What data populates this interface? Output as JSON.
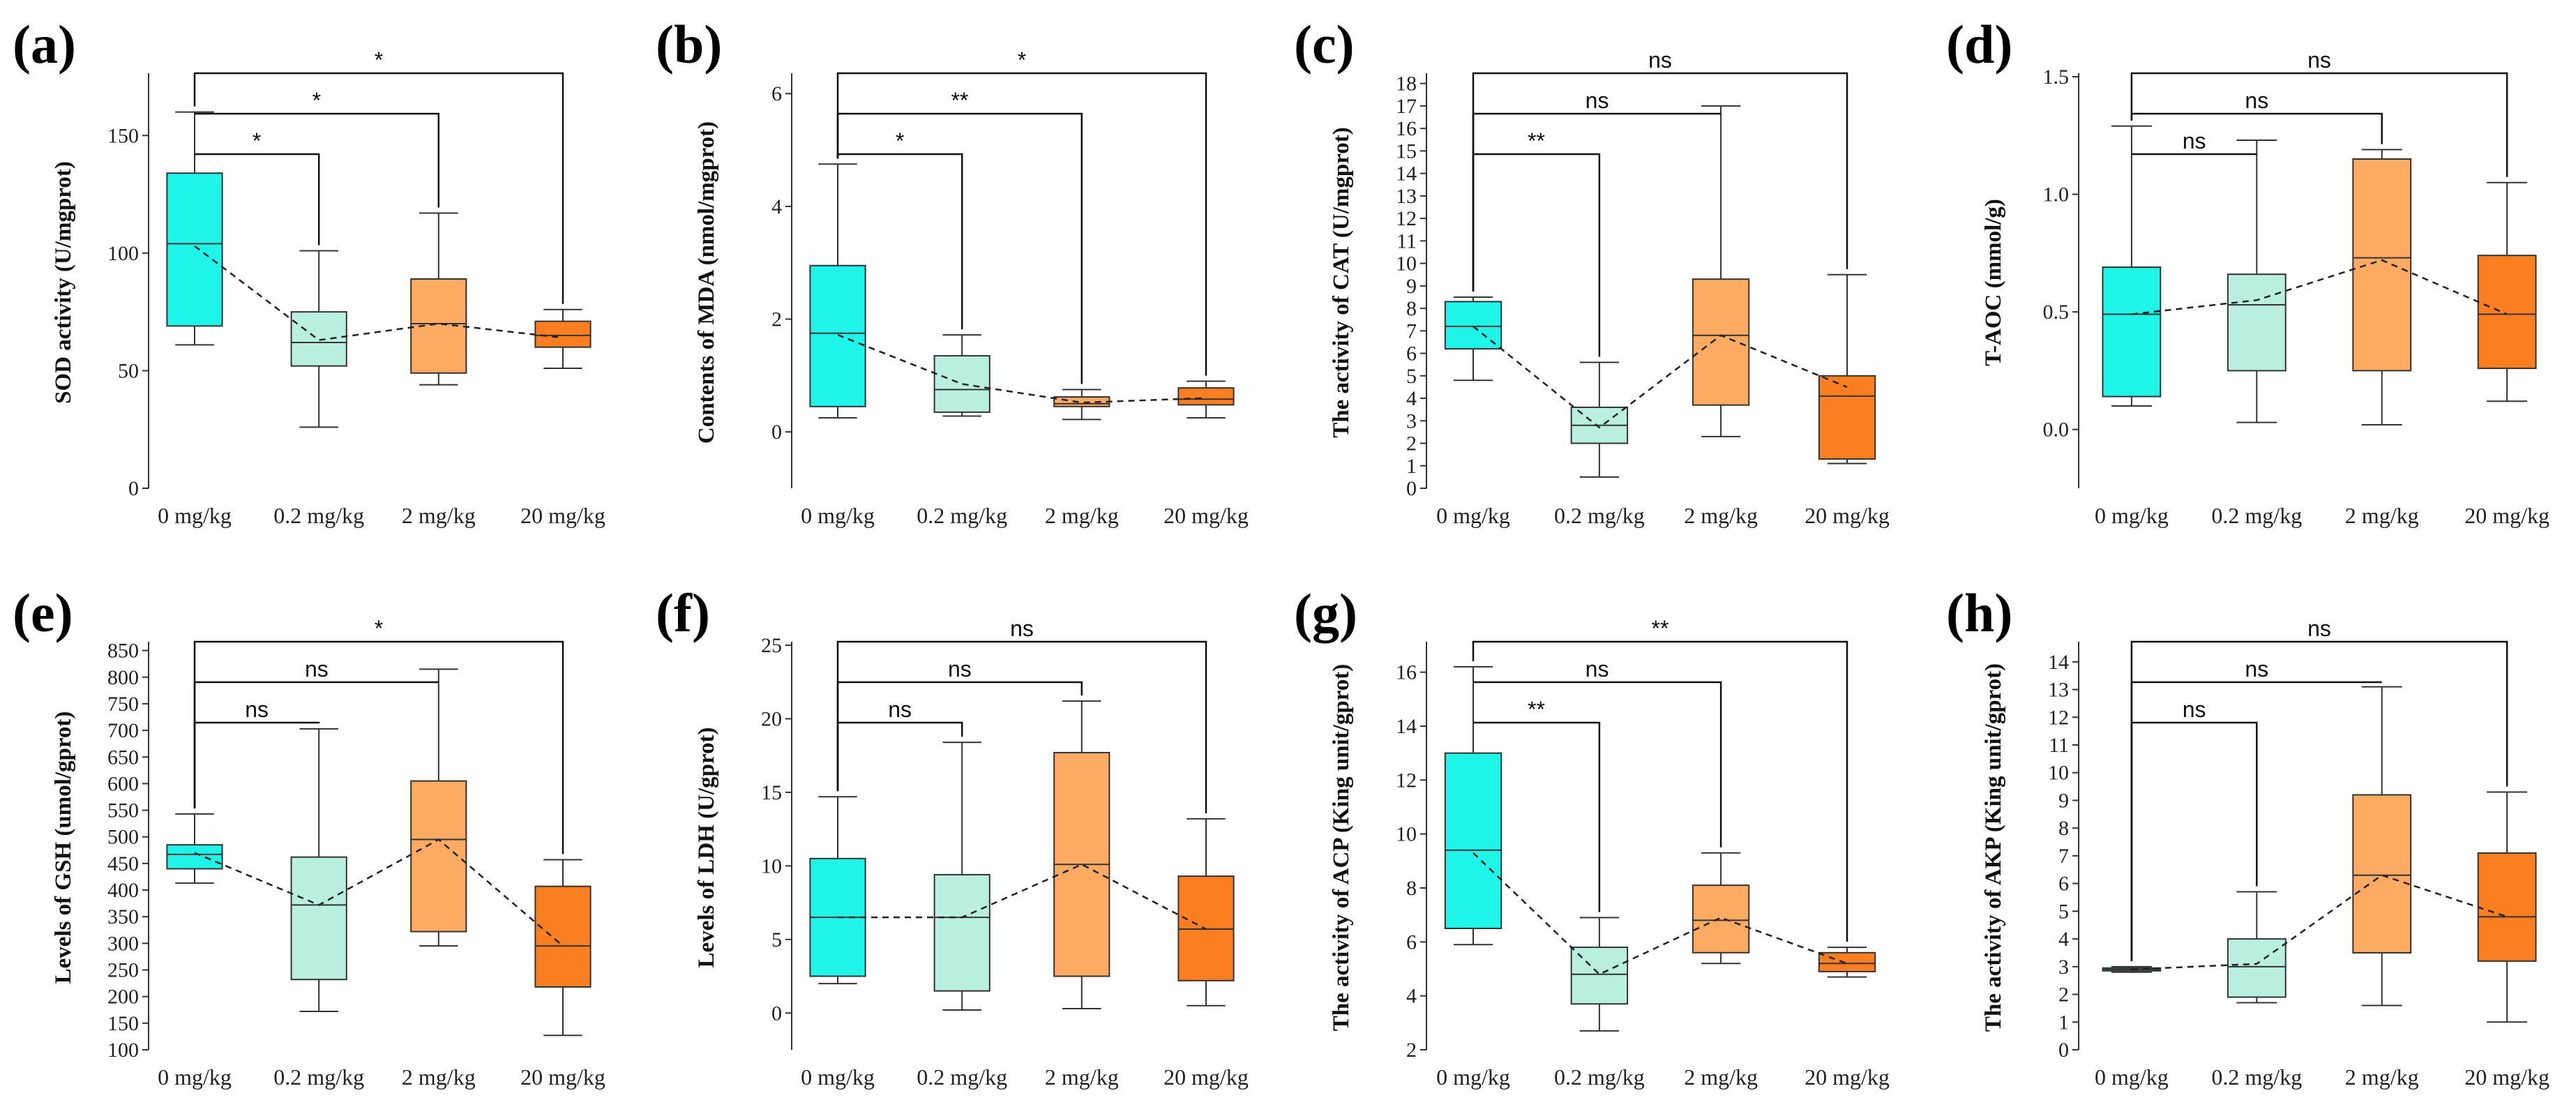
{
  "colors": {
    "group_0": "#1ef5e8",
    "group_02": "#b9efde",
    "group_2": "#fdab63",
    "group_20": "#fb7f20",
    "stroke": "#333333"
  },
  "chart_data": [
    {
      "panel": "(a)",
      "type": "box",
      "ylabel": "SOD activity (U/mgprot)",
      "ylim": [
        0,
        175
      ],
      "yticks": [
        0,
        50,
        100,
        150
      ],
      "categories": [
        "0 mg/kg",
        "0.2 mg/kg",
        "2 mg/kg",
        "20 mg/kg"
      ],
      "boxes": [
        {
          "min": 61,
          "q1": 69,
          "median": 104,
          "q3": 134,
          "max": 160,
          "mean": 103
        },
        {
          "min": 26,
          "q1": 52,
          "median": 62,
          "q3": 75,
          "max": 101,
          "mean": 63
        },
        {
          "min": 44,
          "q1": 49,
          "median": 70,
          "q3": 89,
          "max": 117,
          "mean": 70
        },
        {
          "min": 51,
          "q1": 60,
          "median": 65,
          "q3": 71,
          "max": 76,
          "mean": 64
        }
      ],
      "comparisons": [
        {
          "to": 1,
          "label": "*"
        },
        {
          "to": 2,
          "label": "*"
        },
        {
          "to": 3,
          "label": "*"
        }
      ]
    },
    {
      "panel": "(b)",
      "type": "box",
      "ylabel": "Contents of MDA (nmol/mgprot)",
      "ylim": [
        -1,
        6.3
      ],
      "yticks": [
        0,
        2,
        4,
        6
      ],
      "categories": [
        "0 mg/kg",
        "0.2 mg/kg",
        "2 mg/kg",
        "20 mg/kg"
      ],
      "boxes": [
        {
          "min": 0.25,
          "q1": 0.45,
          "median": 1.75,
          "q3": 2.95,
          "max": 4.75,
          "mean": 1.72
        },
        {
          "min": 0.28,
          "q1": 0.35,
          "median": 0.75,
          "q3": 1.35,
          "max": 1.72,
          "mean": 0.85
        },
        {
          "min": 0.22,
          "q1": 0.45,
          "median": 0.5,
          "q3": 0.62,
          "max": 0.75,
          "mean": 0.52
        },
        {
          "min": 0.25,
          "q1": 0.48,
          "median": 0.58,
          "q3": 0.78,
          "max": 0.9,
          "mean": 0.6
        }
      ],
      "comparisons": [
        {
          "to": 1,
          "label": "*"
        },
        {
          "to": 2,
          "label": "**"
        },
        {
          "to": 3,
          "label": "*"
        }
      ]
    },
    {
      "panel": "(c)",
      "type": "box",
      "ylabel": "The activity of CAT (U/mgprot)",
      "ylim": [
        0,
        18.3
      ],
      "yticks": [
        0,
        1,
        2,
        3,
        4,
        5,
        6,
        7,
        8,
        9,
        10,
        11,
        12,
        13,
        14,
        15,
        16,
        17,
        18
      ],
      "categories": [
        "0 mg/kg",
        "0.2 mg/kg",
        "2 mg/kg",
        "20 mg/kg"
      ],
      "boxes": [
        {
          "min": 4.8,
          "q1": 6.2,
          "median": 7.2,
          "q3": 8.3,
          "max": 8.5,
          "mean": 7.2
        },
        {
          "min": 0.5,
          "q1": 2.0,
          "median": 2.8,
          "q3": 3.6,
          "max": 5.6,
          "mean": 2.7
        },
        {
          "min": 2.3,
          "q1": 3.7,
          "median": 6.8,
          "q3": 9.3,
          "max": 17.0,
          "mean": 6.8
        },
        {
          "min": 1.1,
          "q1": 1.3,
          "median": 4.1,
          "q3": 5.0,
          "max": 9.5,
          "mean": 4.5
        }
      ],
      "comparisons": [
        {
          "to": 1,
          "label": "**"
        },
        {
          "to": 2,
          "label": "ns"
        },
        {
          "to": 3,
          "label": "ns"
        }
      ]
    },
    {
      "panel": "(d)",
      "type": "box",
      "ylabel": "T-AOC (mmol/g)",
      "ylim": [
        -0.25,
        1.5
      ],
      "yticks": [
        0.0,
        0.5,
        1.0,
        1.5
      ],
      "ytick_labels": [
        "0.0",
        "0.5",
        "1.0",
        "1.5"
      ],
      "categories": [
        "0 mg/kg",
        "0.2 mg/kg",
        "2 mg/kg",
        "20 mg/kg"
      ],
      "boxes": [
        {
          "min": 0.1,
          "q1": 0.14,
          "median": 0.49,
          "q3": 0.69,
          "max": 1.29,
          "mean": 0.49
        },
        {
          "min": 0.03,
          "q1": 0.25,
          "median": 0.53,
          "q3": 0.66,
          "max": 1.23,
          "mean": 0.55
        },
        {
          "min": 0.02,
          "q1": 0.25,
          "median": 0.73,
          "q3": 1.15,
          "max": 1.19,
          "mean": 0.72
        },
        {
          "min": 0.12,
          "q1": 0.26,
          "median": 0.49,
          "q3": 0.74,
          "max": 1.05,
          "mean": 0.49
        }
      ],
      "comparisons": [
        {
          "to": 1,
          "label": "ns"
        },
        {
          "to": 2,
          "label": "ns"
        },
        {
          "to": 3,
          "label": "ns"
        }
      ]
    },
    {
      "panel": "(e)",
      "type": "box",
      "ylabel": "Levels of GSH (umol/gprot)",
      "ylim": [
        100,
        860
      ],
      "yticks": [
        100,
        150,
        200,
        250,
        300,
        350,
        400,
        450,
        500,
        550,
        600,
        650,
        700,
        750,
        800,
        850
      ],
      "categories": [
        "0 mg/kg",
        "0.2 mg/kg",
        "2 mg/kg",
        "20 mg/kg"
      ],
      "boxes": [
        {
          "min": 413,
          "q1": 440,
          "median": 467,
          "q3": 485,
          "max": 543,
          "mean": 470
        },
        {
          "min": 172,
          "q1": 232,
          "median": 372,
          "q3": 462,
          "max": 703,
          "mean": 372
        },
        {
          "min": 295,
          "q1": 322,
          "median": 495,
          "q3": 605,
          "max": 815,
          "mean": 495
        },
        {
          "min": 127,
          "q1": 218,
          "median": 295,
          "q3": 407,
          "max": 457,
          "mean": 295
        }
      ],
      "comparisons": [
        {
          "to": 1,
          "label": "ns"
        },
        {
          "to": 2,
          "label": "ns"
        },
        {
          "to": 3,
          "label": "*"
        }
      ]
    },
    {
      "panel": "(f)",
      "type": "box",
      "ylabel": "Levels of LDH (U/gprot)",
      "ylim": [
        -2.5,
        25
      ],
      "yticks": [
        0,
        5,
        10,
        15,
        20,
        25
      ],
      "categories": [
        "0 mg/kg",
        "0.2 mg/kg",
        "2 mg/kg",
        "20 mg/kg"
      ],
      "boxes": [
        {
          "min": 2.0,
          "q1": 2.5,
          "median": 6.5,
          "q3": 10.5,
          "max": 14.7,
          "mean": 6.5
        },
        {
          "min": 0.2,
          "q1": 1.5,
          "median": 6.5,
          "q3": 9.4,
          "max": 18.4,
          "mean": 6.5
        },
        {
          "min": 0.3,
          "q1": 2.5,
          "median": 10.1,
          "q3": 17.7,
          "max": 21.2,
          "mean": 10.1
        },
        {
          "min": 0.5,
          "q1": 2.2,
          "median": 5.7,
          "q3": 9.3,
          "max": 13.2,
          "mean": 5.7
        }
      ],
      "comparisons": [
        {
          "to": 1,
          "label": "ns"
        },
        {
          "to": 2,
          "label": "ns"
        },
        {
          "to": 3,
          "label": "ns"
        }
      ]
    },
    {
      "panel": "(g)",
      "type": "box",
      "ylabel": "The activity of ACP (King unit/gprot)",
      "ylim": [
        2,
        17
      ],
      "yticks": [
        2,
        4,
        6,
        8,
        10,
        12,
        14,
        16
      ],
      "categories": [
        "0 mg/kg",
        "0.2 mg/kg",
        "2 mg/kg",
        "20 mg/kg"
      ],
      "boxes": [
        {
          "min": 5.9,
          "q1": 6.5,
          "median": 9.4,
          "q3": 13.0,
          "max": 16.2,
          "mean": 9.3
        },
        {
          "min": 2.7,
          "q1": 3.7,
          "median": 4.8,
          "q3": 5.8,
          "max": 6.9,
          "mean": 4.8
        },
        {
          "min": 5.2,
          "q1": 5.6,
          "median": 6.8,
          "q3": 8.1,
          "max": 9.3,
          "mean": 6.9
        },
        {
          "min": 4.7,
          "q1": 4.9,
          "median": 5.2,
          "q3": 5.6,
          "max": 5.8,
          "mean": 5.2
        }
      ],
      "comparisons": [
        {
          "to": 1,
          "label": "**"
        },
        {
          "to": 2,
          "label": "ns"
        },
        {
          "to": 3,
          "label": "**"
        }
      ]
    },
    {
      "panel": "(h)",
      "type": "box",
      "ylabel": "The activity of AKP (King unit/gprot)",
      "ylim": [
        0,
        14.6
      ],
      "yticks": [
        0,
        1,
        2,
        3,
        4,
        5,
        6,
        7,
        8,
        9,
        10,
        11,
        12,
        13,
        14
      ],
      "categories": [
        "0 mg/kg",
        "0.2 mg/kg",
        "2 mg/kg",
        "20 mg/kg"
      ],
      "boxes": [
        {
          "min": 2.8,
          "q1": 2.85,
          "median": 2.9,
          "q3": 2.95,
          "max": 3.0,
          "mean": 2.9
        },
        {
          "min": 1.7,
          "q1": 1.9,
          "median": 3.0,
          "q3": 4.0,
          "max": 5.7,
          "mean": 3.1
        },
        {
          "min": 1.6,
          "q1": 3.5,
          "median": 6.3,
          "q3": 9.2,
          "max": 13.1,
          "mean": 6.3
        },
        {
          "min": 1.0,
          "q1": 3.2,
          "median": 4.8,
          "q3": 7.1,
          "max": 9.3,
          "mean": 4.8
        }
      ],
      "comparisons": [
        {
          "to": 1,
          "label": "ns"
        },
        {
          "to": 2,
          "label": "ns"
        },
        {
          "to": 3,
          "label": "ns"
        }
      ]
    }
  ]
}
